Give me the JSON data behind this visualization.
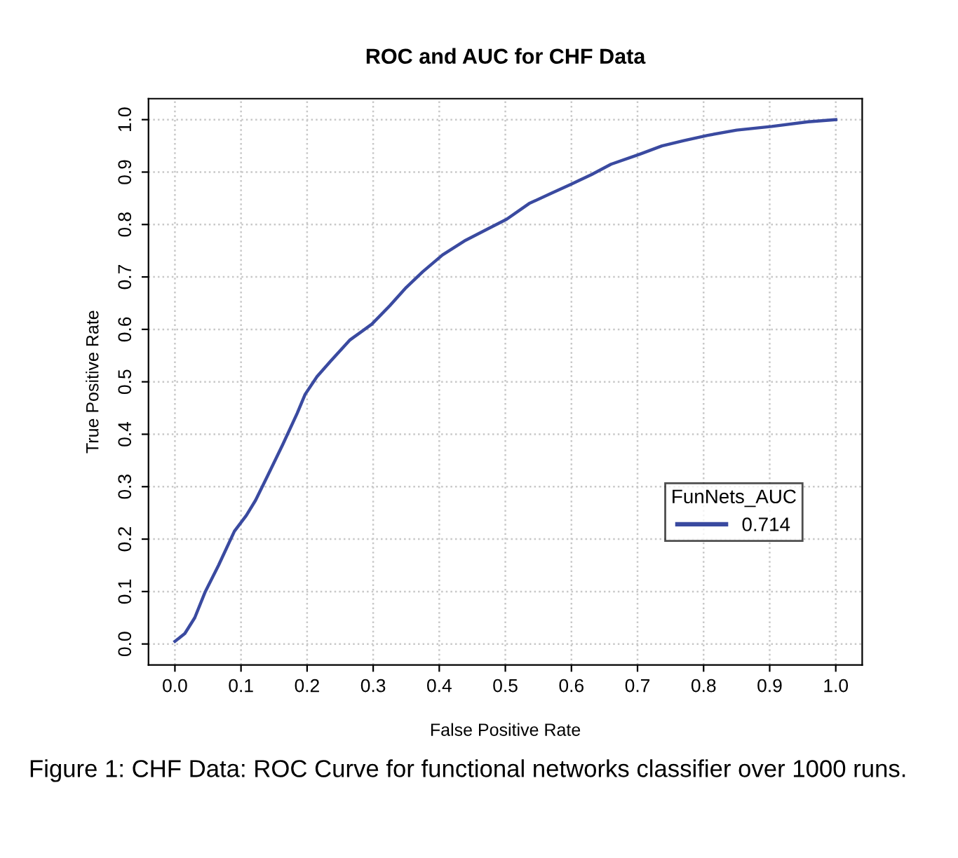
{
  "chart_data": {
    "type": "line",
    "title": "ROC and AUC for CHF Data",
    "xlabel": "False Positive Rate",
    "ylabel": "True Positive Rate",
    "legend_title": "FunNets_AUC",
    "legend": "right",
    "grid": true,
    "line_style": "solid",
    "marker": "none",
    "xlim": [
      -0.04,
      1.04
    ],
    "ylim": [
      -0.04,
      1.04
    ],
    "xticks": [
      {
        "value": 0,
        "label": "0.0"
      },
      {
        "value": 0.1,
        "label": "0.1"
      },
      {
        "value": 0.2,
        "label": "0.2"
      },
      {
        "value": 0.3,
        "label": "0.3"
      },
      {
        "value": 0.4,
        "label": "0.4"
      },
      {
        "value": 0.5,
        "label": "0.5"
      },
      {
        "value": 0.6,
        "label": "0.6"
      },
      {
        "value": 0.7,
        "label": "0.7"
      },
      {
        "value": 0.8,
        "label": "0.8"
      },
      {
        "value": 0.9,
        "label": "0.9"
      },
      {
        "value": 1,
        "label": "1.0"
      }
    ],
    "yticks": [
      {
        "value": 0,
        "label": "0.0"
      },
      {
        "value": 0.1,
        "label": "0.1"
      },
      {
        "value": 0.2,
        "label": "0.2"
      },
      {
        "value": 0.3,
        "label": "0.3"
      },
      {
        "value": 0.4,
        "label": "0.4"
      },
      {
        "value": 0.5,
        "label": "0.5"
      },
      {
        "value": 0.6,
        "label": "0.6"
      },
      {
        "value": 0.7,
        "label": "0.7"
      },
      {
        "value": 0.8,
        "label": "0.8"
      },
      {
        "value": 0.9,
        "label": "0.9"
      },
      {
        "value": 1,
        "label": "1.0"
      }
    ],
    "series": [
      {
        "name": "0.714",
        "color": "#3a4aa0",
        "x": [
          0,
          0.015,
          0.03,
          0.046,
          0.066,
          0.09,
          0.108,
          0.122,
          0.14,
          0.163,
          0.185,
          0.197,
          0.215,
          0.236,
          0.265,
          0.298,
          0.325,
          0.35,
          0.375,
          0.405,
          0.44,
          0.474,
          0.502,
          0.536,
          0.57,
          0.598,
          0.63,
          0.66,
          0.703,
          0.737,
          0.77,
          0.806,
          0.85,
          0.903,
          0.958,
          1.0
        ],
        "values": [
          0.005,
          0.02,
          0.05,
          0.1,
          0.15,
          0.215,
          0.245,
          0.274,
          0.32,
          0.38,
          0.44,
          0.476,
          0.51,
          0.54,
          0.58,
          0.61,
          0.645,
          0.68,
          0.71,
          0.742,
          0.77,
          0.792,
          0.81,
          0.84,
          0.86,
          0.876,
          0.895,
          0.915,
          0.934,
          0.95,
          0.96,
          0.97,
          0.98,
          0.987,
          0.996,
          1.0
        ]
      }
    ],
    "annotations": [
      "Figure 1: CHF Data: ROC Curve for functional networks classifier over 1000 runs."
    ]
  }
}
